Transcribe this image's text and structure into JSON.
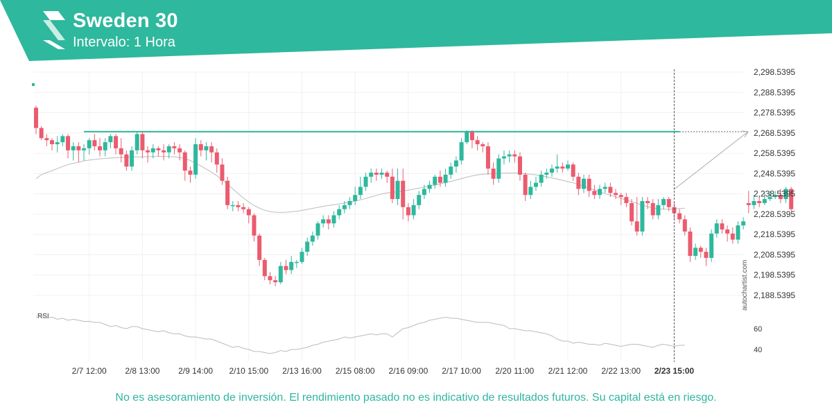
{
  "header": {
    "title": "Sweden 30",
    "subtitle": "Intervalo: 1 Hora",
    "brand_color": "#2eb89d",
    "logo_icon": "autochartist-logo-icon"
  },
  "footer": {
    "disclaimer": "No es asesoramiento de inversión. El rendimiento pasado no es indicativo de resultados futuros. Su capital está en riesgo.",
    "brand_vertical": "autochartist.com"
  },
  "chart_data": {
    "type": "candlestick",
    "colors": {
      "up": "#2eb89d",
      "down": "#eb5b6e",
      "level": "#2eb89d",
      "ma": "#bbbbbb",
      "projection": "#aaaaaa"
    },
    "y_ticks": [
      "2,298.5395",
      "2,288.5395",
      "2,278.5395",
      "2,268.5395",
      "2,258.5395",
      "2,248.5395",
      "2,238.5395",
      "2,228.5395",
      "2,218.5395",
      "2,208.5395",
      "2,198.5395",
      "2,188.5395"
    ],
    "ylim": [
      2188.5395,
      2298.5395
    ],
    "x_ticks": [
      {
        "index": 10,
        "label": "2/7 12:00"
      },
      {
        "index": 20,
        "label": "2/8 13:00"
      },
      {
        "index": 30,
        "label": "2/9 14:00"
      },
      {
        "index": 40,
        "label": "2/10 15:00"
      },
      {
        "index": 50,
        "label": "2/13 16:00"
      },
      {
        "index": 60,
        "label": "2/15 08:00"
      },
      {
        "index": 70,
        "label": "2/16 09:00"
      },
      {
        "index": 80,
        "label": "2/17 10:00"
      },
      {
        "index": 90,
        "label": "2/20 11:00"
      },
      {
        "index": 100,
        "label": "2/21 12:00"
      },
      {
        "index": 110,
        "label": "2/22 13:00"
      },
      {
        "index": 120,
        "label": "2/23 15:00",
        "current": true
      }
    ],
    "resistance_level": 2269.2,
    "projection": {
      "from_index": 120,
      "from_value": 2240.8,
      "to_index": 134,
      "to_value": 2269.2
    },
    "candles": [
      [
        2281,
        2271,
        2282,
        2268
      ],
      [
        2271,
        2266,
        2272,
        2265
      ],
      [
        2266,
        2265,
        2268,
        2262
      ],
      [
        2265,
        2263,
        2266,
        2260
      ],
      [
        2263,
        2264,
        2267,
        2259
      ],
      [
        2264,
        2267,
        2268,
        2262
      ],
      [
        2267,
        2260,
        2268,
        2256
      ],
      [
        2260,
        2262,
        2264,
        2255
      ],
      [
        2262,
        2260,
        2264,
        2254
      ],
      [
        2260,
        2261,
        2263,
        2255
      ],
      [
        2261,
        2265,
        2266,
        2258
      ],
      [
        2265,
        2262,
        2268,
        2260
      ],
      [
        2262,
        2260,
        2266,
        2257
      ],
      [
        2260,
        2264,
        2266,
        2257
      ],
      [
        2264,
        2267,
        2268,
        2261
      ],
      [
        2267,
        2261,
        2268,
        2258
      ],
      [
        2261,
        2258,
        2266,
        2254
      ],
      [
        2258,
        2252,
        2260,
        2250
      ],
      [
        2252,
        2260,
        2262,
        2250
      ],
      [
        2260,
        2268,
        2269,
        2258
      ],
      [
        2268,
        2260,
        2269,
        2256
      ],
      [
        2260,
        2259,
        2262,
        2254
      ],
      [
        2259,
        2261,
        2263,
        2256
      ],
      [
        2261,
        2260,
        2262,
        2257
      ],
      [
        2260,
        2259,
        2263,
        2255
      ],
      [
        2259,
        2262,
        2263,
        2256
      ],
      [
        2262,
        2261,
        2264,
        2258
      ],
      [
        2261,
        2259,
        2263,
        2255
      ],
      [
        2259,
        2250,
        2260,
        2245
      ],
      [
        2250,
        2248,
        2252,
        2244
      ],
      [
        2248,
        2263,
        2266,
        2246
      ],
      [
        2263,
        2260,
        2265,
        2257
      ],
      [
        2260,
        2262,
        2264,
        2255
      ],
      [
        2262,
        2259,
        2264,
        2254
      ],
      [
        2259,
        2253,
        2261,
        2249
      ],
      [
        2253,
        2245,
        2256,
        2243
      ],
      [
        2245,
        2233,
        2247,
        2231
      ],
      [
        2233,
        2233,
        2235,
        2230
      ],
      [
        2233,
        2232,
        2235,
        2230
      ],
      [
        2232,
        2231,
        2234,
        2229
      ],
      [
        2231,
        2228,
        2232,
        2224
      ],
      [
        2228,
        2218,
        2229,
        2215
      ],
      [
        2218,
        2206,
        2219,
        2203
      ],
      [
        2206,
        2198,
        2207,
        2196
      ],
      [
        2198,
        2196,
        2200,
        2194
      ],
      [
        2196,
        2195,
        2198,
        2193
      ],
      [
        2195,
        2203,
        2205,
        2194
      ],
      [
        2203,
        2201,
        2206,
        2199
      ],
      [
        2201,
        2205,
        2208,
        2199
      ],
      [
        2205,
        2205,
        2206,
        2202
      ],
      [
        2205,
        2210,
        2212,
        2204
      ],
      [
        2210,
        2215,
        2217,
        2208
      ],
      [
        2215,
        2218,
        2220,
        2213
      ],
      [
        2218,
        2224,
        2225,
        2216
      ],
      [
        2224,
        2226,
        2228,
        2222
      ],
      [
        2226,
        2224,
        2228,
        2221
      ],
      [
        2224,
        2228,
        2230,
        2222
      ],
      [
        2228,
        2231,
        2233,
        2226
      ],
      [
        2231,
        2233,
        2235,
        2229
      ],
      [
        2233,
        2235,
        2237,
        2231
      ],
      [
        2235,
        2238,
        2242,
        2233
      ],
      [
        2238,
        2242,
        2247,
        2236
      ],
      [
        2242,
        2247,
        2249,
        2240
      ],
      [
        2247,
        2249,
        2251,
        2244
      ],
      [
        2249,
        2248,
        2251,
        2245
      ],
      [
        2248,
        2249,
        2251,
        2246
      ],
      [
        2249,
        2247,
        2250,
        2244
      ],
      [
        2247,
        2236,
        2251,
        2234
      ],
      [
        2236,
        2245,
        2251,
        2233
      ],
      [
        2245,
        2232,
        2251,
        2226
      ],
      [
        2232,
        2228,
        2234,
        2225
      ],
      [
        2228,
        2233,
        2236,
        2226
      ],
      [
        2233,
        2238,
        2240,
        2231
      ],
      [
        2238,
        2241,
        2243,
        2236
      ],
      [
        2241,
        2243,
        2245,
        2239
      ],
      [
        2243,
        2247,
        2248,
        2241
      ],
      [
        2247,
        2244,
        2250,
        2242
      ],
      [
        2244,
        2248,
        2251,
        2242
      ],
      [
        2248,
        2252,
        2254,
        2246
      ],
      [
        2252,
        2255,
        2257,
        2249
      ],
      [
        2255,
        2264,
        2266,
        2253
      ],
      [
        2264,
        2269,
        2270,
        2263
      ],
      [
        2269,
        2265,
        2270,
        2261
      ],
      [
        2265,
        2263,
        2267,
        2260
      ],
      [
        2263,
        2262,
        2264,
        2259
      ],
      [
        2262,
        2251,
        2264,
        2248
      ],
      [
        2251,
        2246,
        2254,
        2243
      ],
      [
        2246,
        2256,
        2258,
        2244
      ],
      [
        2256,
        2257,
        2260,
        2253
      ],
      [
        2257,
        2258,
        2260,
        2254
      ],
      [
        2258,
        2257,
        2260,
        2254
      ],
      [
        2257,
        2248,
        2259,
        2245
      ],
      [
        2248,
        2238,
        2249,
        2235
      ],
      [
        2238,
        2242,
        2245,
        2236
      ],
      [
        2242,
        2244,
        2247,
        2240
      ],
      [
        2244,
        2248,
        2250,
        2242
      ],
      [
        2248,
        2249,
        2251,
        2246
      ],
      [
        2249,
        2251,
        2253,
        2247
      ],
      [
        2251,
        2252,
        2258,
        2249
      ],
      [
        2252,
        2251,
        2254,
        2249
      ],
      [
        2251,
        2253,
        2255,
        2250
      ],
      [
        2253,
        2247,
        2254,
        2245
      ],
      [
        2247,
        2241,
        2249,
        2238
      ],
      [
        2241,
        2246,
        2248,
        2239
      ],
      [
        2246,
        2240,
        2248,
        2237
      ],
      [
        2240,
        2238,
        2243,
        2236
      ],
      [
        2238,
        2241,
        2243,
        2236
      ],
      [
        2241,
        2242,
        2244,
        2239
      ],
      [
        2242,
        2239,
        2244,
        2237
      ],
      [
        2239,
        2238,
        2241,
        2236
      ],
      [
        2238,
        2237,
        2239,
        2233
      ],
      [
        2237,
        2234,
        2239,
        2232
      ],
      [
        2234,
        2225,
        2236,
        2223
      ],
      [
        2225,
        2220,
        2237,
        2218
      ],
      [
        2220,
        2235,
        2237,
        2218
      ],
      [
        2235,
        2234,
        2237,
        2231
      ],
      [
        2234,
        2228,
        2236,
        2226
      ],
      [
        2228,
        2233,
        2236,
        2226
      ],
      [
        2233,
        2236,
        2237,
        2231
      ],
      [
        2236,
        2232,
        2237,
        2230
      ],
      [
        2232,
        2229,
        2234,
        2226
      ],
      [
        2229,
        2226,
        2231,
        2224
      ],
      [
        2226,
        2220,
        2228,
        2218
      ],
      [
        2220,
        2208,
        2222,
        2205
      ],
      [
        2208,
        2212,
        2214,
        2206
      ],
      [
        2212,
        2210,
        2213,
        2207
      ],
      [
        2210,
        2207,
        2212,
        2203
      ],
      [
        2207,
        2219,
        2221,
        2205
      ],
      [
        2219,
        2224,
        2226,
        2217
      ],
      [
        2224,
        2221,
        2226,
        2219
      ],
      [
        2221,
        2219,
        2223,
        2215
      ],
      [
        2219,
        2216,
        2222,
        2214
      ],
      [
        2216,
        2223,
        2225,
        2214
      ],
      [
        2223,
        2225,
        2227,
        2221
      ],
      [
        2234,
        2233,
        2240,
        2229
      ],
      [
        2233,
        2235,
        2238,
        2231
      ],
      [
        2235,
        2234,
        2237,
        2232
      ],
      [
        2234,
        2236,
        2239,
        2233
      ],
      [
        2236,
        2237,
        2240,
        2235
      ],
      [
        2237,
        2238,
        2240,
        2236
      ],
      [
        2238,
        2236,
        2241,
        2234
      ],
      [
        2236,
        2241,
        2242,
        2234
      ],
      [
        2241,
        2231,
        2242,
        2230
      ]
    ],
    "moving_average": [
      2246,
      2248,
      2249,
      2250,
      2251,
      2252,
      2253,
      2253.6,
      2254.2,
      2254.8,
      2255.2,
      2255.5,
      2255.8,
      2256,
      2256.2,
      2256.4,
      2256.5,
      2256.6,
      2256.7,
      2256.8,
      2256.8,
      2256.9,
      2257,
      2257,
      2257,
      2256.9,
      2256.8,
      2256.5,
      2256,
      2255,
      2253.7,
      2252.3,
      2250.8,
      2249.2,
      2247.5,
      2245.5,
      2243.3,
      2241,
      2238.7,
      2236.5,
      2234.5,
      2232.8,
      2231.5,
      2230.5,
      2229.8,
      2229.5,
      2229.4,
      2229.5,
      2229.7,
      2230,
      2230.4,
      2230.9,
      2231.4,
      2231.9,
      2232.4,
      2232.8,
      2233.2,
      2233.6,
      2234,
      2234.5,
      2235,
      2235.6,
      2236.3,
      2237,
      2237.8,
      2238.5,
      2239,
      2239.3,
      2239.6,
      2240,
      2240.4,
      2240.9,
      2241.4,
      2241.9,
      2242.4,
      2242.9,
      2243.5,
      2244.1,
      2244.7,
      2245.4,
      2246.1,
      2246.8,
      2247.4,
      2247.9,
      2248.2,
      2248.4,
      2248.5,
      2248.6,
      2248.7,
      2248.8,
      2248.8,
      2248.7,
      2248.5,
      2248.2,
      2247.9,
      2247.5,
      2247,
      2246.4,
      2245.8,
      2245.2,
      2244.6,
      2244,
      2243.2,
      2242.3,
      2241.4,
      2240.5,
      2239.6,
      2238.7,
      2237.9,
      2237.1,
      2236.3,
      2235.5,
      2234.7,
      2233.9,
      2233,
      2232.2,
      2231.6,
      2231.2,
      2231,
      2231,
      2231.1,
      2231.3,
      2231.5
    ],
    "rsi": {
      "label": "RSI",
      "ticks": [
        60,
        40
      ],
      "values": [
        71,
        72,
        70,
        71,
        69,
        70,
        68,
        69,
        68,
        67,
        67,
        66,
        66,
        64,
        62,
        63,
        61,
        60,
        62,
        62,
        60,
        59,
        58,
        57,
        58,
        56,
        55,
        55,
        53,
        52,
        52,
        51,
        50,
        50,
        48,
        46,
        44,
        42,
        43,
        41,
        40,
        38,
        38,
        37,
        36,
        37,
        39,
        38,
        40,
        40,
        41,
        42,
        44,
        45,
        47,
        48,
        49,
        50,
        52,
        51,
        52,
        53,
        54,
        55,
        54,
        55,
        55,
        52,
        56,
        60,
        61,
        63,
        65,
        66,
        68,
        69,
        70,
        71,
        70,
        70,
        69,
        68,
        67,
        66,
        66,
        66,
        65,
        64,
        63,
        60,
        60,
        59,
        58,
        58,
        57,
        56,
        55,
        53,
        50,
        48,
        48,
        46,
        47,
        46,
        45,
        45,
        44,
        46,
        45,
        44,
        43,
        44,
        45,
        45,
        44,
        43,
        42,
        44,
        45,
        44,
        43,
        44,
        44
      ]
    }
  }
}
